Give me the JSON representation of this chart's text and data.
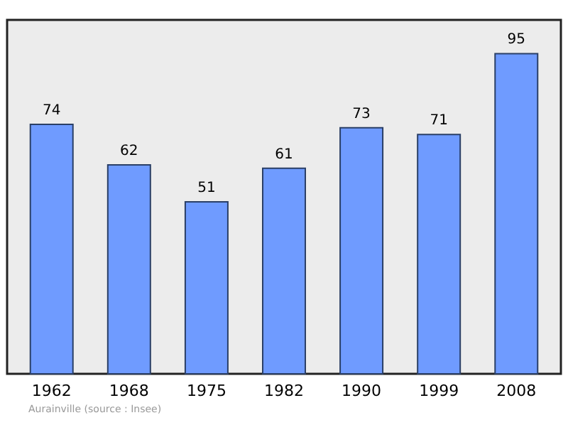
{
  "chart_data": {
    "type": "bar",
    "categories": [
      "1962",
      "1968",
      "1975",
      "1982",
      "1990",
      "1999",
      "2008"
    ],
    "values": [
      74,
      62,
      51,
      61,
      73,
      71,
      95
    ],
    "color": "#6f9bff",
    "ylim": [
      0,
      105
    ],
    "data_labels": true,
    "grid": false,
    "annotations": [
      "Aurainville    (source : Insee)"
    ]
  }
}
